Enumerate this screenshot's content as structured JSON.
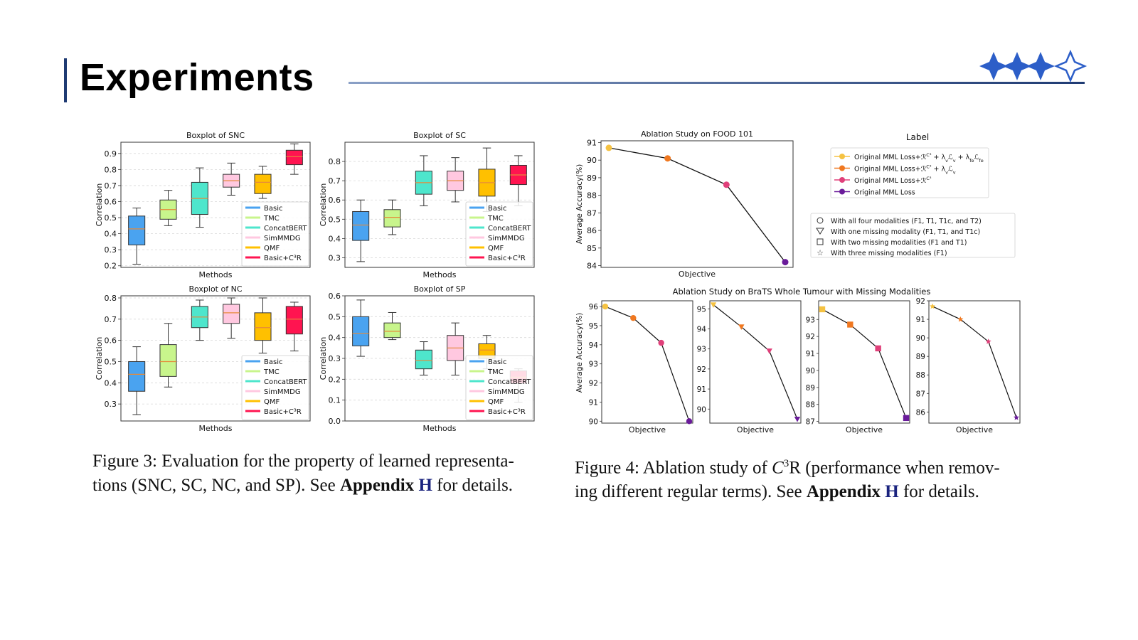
{
  "slide": {
    "title": "Experiments"
  },
  "captions": {
    "fig3": {
      "lead": "Figure 3: Evaluation for the property of learned representa-",
      "line2_pre": "tions (SNC, SC, NC, and SP). See ",
      "appendix": "Appendix",
      "appendix_ref": "H",
      "post": " for details."
    },
    "fig4": {
      "lead_pre": "Figure 4: Ablation study of ",
      "symbol": "C",
      "sup": "3",
      "symbol_tail": "R",
      "lead_post": " (performance when remov-",
      "line2_pre": "ing different regular terms). See ",
      "appendix": "Appendix",
      "appendix_ref": "H",
      "post": " for details."
    }
  },
  "colors": {
    "accent": "#1f3b73",
    "Basic": "#4aa3f0",
    "TMC": "#c8f58c",
    "ConcatBERT": "#4ee6cc",
    "SimMMDG": "#ffc8e0",
    "QMF": "#ffc000",
    "BasicC3R": "#ff1450"
  },
  "chart_data": [
    {
      "type": "box",
      "title": "Boxplot of SNC",
      "xlabel": "Methods",
      "ylabel": "Correlation",
      "ylim": [
        0.19,
        0.97
      ],
      "yticks": [
        0.2,
        0.3,
        0.4,
        0.5,
        0.6,
        0.7,
        0.8,
        0.9
      ],
      "legend_position": "lower-right",
      "series": [
        {
          "name": "Basic",
          "color": "#4aa3f0",
          "whislo": 0.21,
          "q1": 0.33,
          "median": 0.43,
          "q3": 0.51,
          "whishi": 0.56
        },
        {
          "name": "TMC",
          "color": "#c8f58c",
          "whislo": 0.45,
          "q1": 0.49,
          "median": 0.55,
          "q3": 0.61,
          "whishi": 0.67
        },
        {
          "name": "ConcatBERT",
          "color": "#4ee6cc",
          "whislo": 0.44,
          "q1": 0.52,
          "median": 0.62,
          "q3": 0.72,
          "whishi": 0.81
        },
        {
          "name": "SimMMDG",
          "color": "#ffc8e0",
          "whislo": 0.64,
          "q1": 0.69,
          "median": 0.73,
          "q3": 0.77,
          "whishi": 0.84
        },
        {
          "name": "QMF",
          "color": "#ffc000",
          "whislo": 0.62,
          "q1": 0.65,
          "median": 0.72,
          "q3": 0.77,
          "whishi": 0.82
        },
        {
          "name": "Basic+C³R",
          "color": "#ff1450",
          "whislo": 0.77,
          "q1": 0.83,
          "median": 0.88,
          "q3": 0.92,
          "whishi": 0.96
        }
      ]
    },
    {
      "type": "box",
      "title": "Boxplot of SC",
      "xlabel": "Methods",
      "ylabel": "Correlation",
      "ylim": [
        0.25,
        0.9
      ],
      "yticks": [
        0.3,
        0.4,
        0.5,
        0.6,
        0.7,
        0.8
      ],
      "legend_position": "lower-right",
      "series": [
        {
          "name": "Basic",
          "color": "#4aa3f0",
          "whislo": 0.28,
          "q1": 0.39,
          "median": 0.47,
          "q3": 0.54,
          "whishi": 0.6
        },
        {
          "name": "TMC",
          "color": "#c8f58c",
          "whislo": 0.42,
          "q1": 0.46,
          "median": 0.51,
          "q3": 0.55,
          "whishi": 0.6
        },
        {
          "name": "ConcatBERT",
          "color": "#4ee6cc",
          "whislo": 0.57,
          "q1": 0.63,
          "median": 0.69,
          "q3": 0.75,
          "whishi": 0.83
        },
        {
          "name": "SimMMDG",
          "color": "#ffc8e0",
          "whislo": 0.59,
          "q1": 0.65,
          "median": 0.7,
          "q3": 0.75,
          "whishi": 0.82
        },
        {
          "name": "QMF",
          "color": "#ffc000",
          "whislo": 0.54,
          "q1": 0.62,
          "median": 0.69,
          "q3": 0.76,
          "whishi": 0.87
        },
        {
          "name": "Basic+C³R",
          "color": "#ff1450",
          "whislo": 0.57,
          "q1": 0.68,
          "median": 0.73,
          "q3": 0.78,
          "whishi": 0.83
        }
      ]
    },
    {
      "type": "box",
      "title": "Boxplot of NC",
      "xlabel": "Methods",
      "ylabel": "Correlation",
      "ylim": [
        0.22,
        0.81
      ],
      "yticks": [
        0.3,
        0.4,
        0.5,
        0.6,
        0.7,
        0.8
      ],
      "legend_position": "lower-right",
      "series": [
        {
          "name": "Basic",
          "color": "#4aa3f0",
          "whislo": 0.25,
          "q1": 0.36,
          "median": 0.44,
          "q3": 0.5,
          "whishi": 0.57
        },
        {
          "name": "TMC",
          "color": "#c8f58c",
          "whislo": 0.38,
          "q1": 0.43,
          "median": 0.5,
          "q3": 0.58,
          "whishi": 0.68
        },
        {
          "name": "ConcatBERT",
          "color": "#4ee6cc",
          "whislo": 0.6,
          "q1": 0.66,
          "median": 0.71,
          "q3": 0.76,
          "whishi": 0.79
        },
        {
          "name": "SimMMDG",
          "color": "#ffc8e0",
          "whislo": 0.61,
          "q1": 0.68,
          "median": 0.73,
          "q3": 0.77,
          "whishi": 0.8
        },
        {
          "name": "QMF",
          "color": "#ffc000",
          "whislo": 0.54,
          "q1": 0.6,
          "median": 0.66,
          "q3": 0.73,
          "whishi": 0.8
        },
        {
          "name": "Basic+C³R",
          "color": "#ff1450",
          "whislo": 0.55,
          "q1": 0.63,
          "median": 0.7,
          "q3": 0.76,
          "whishi": 0.78
        }
      ]
    },
    {
      "type": "box",
      "title": "Boxplot of SP",
      "xlabel": "Methods",
      "ylabel": "Correlation",
      "ylim": [
        0.0,
        0.6
      ],
      "yticks": [
        0.0,
        0.1,
        0.2,
        0.3,
        0.4,
        0.5,
        0.6
      ],
      "legend_position": "lower-right",
      "series": [
        {
          "name": "Basic",
          "color": "#4aa3f0",
          "whislo": 0.31,
          "q1": 0.36,
          "median": 0.42,
          "q3": 0.5,
          "whishi": 0.58
        },
        {
          "name": "TMC",
          "color": "#c8f58c",
          "whislo": 0.39,
          "q1": 0.4,
          "median": 0.43,
          "q3": 0.47,
          "whishi": 0.52
        },
        {
          "name": "ConcatBERT",
          "color": "#4ee6cc",
          "whislo": 0.22,
          "q1": 0.25,
          "median": 0.29,
          "q3": 0.34,
          "whishi": 0.38
        },
        {
          "name": "SimMMDG",
          "color": "#ffc8e0",
          "whislo": 0.22,
          "q1": 0.29,
          "median": 0.35,
          "q3": 0.41,
          "whishi": 0.47
        },
        {
          "name": "QMF",
          "color": "#ffc000",
          "whislo": 0.25,
          "q1": 0.3,
          "median": 0.34,
          "q3": 0.37,
          "whishi": 0.41
        },
        {
          "name": "Basic+C³R",
          "color": "#ff1450",
          "whislo": 0.09,
          "q1": 0.18,
          "median": 0.21,
          "q3": 0.24,
          "whishi": 0.25
        }
      ]
    },
    {
      "type": "line",
      "title": "Ablation Study on FOOD 101",
      "xlabel": "Objective",
      "ylabel": "Average Accuracy(%)",
      "ylim": [
        83.9,
        91.1
      ],
      "yticks": [
        84,
        85,
        86,
        87,
        88,
        89,
        90,
        91
      ],
      "values": [
        90.7,
        90.1,
        88.6,
        84.2
      ],
      "point_colors": [
        "#f5c242",
        "#f07820",
        "#e0407a",
        "#6a1b9a"
      ],
      "marker": "circle"
    },
    {
      "type": "line",
      "title": "Ablation Study on BraTS Whole Tumour with Missing Modalities",
      "xlabel": "Objective",
      "ylabel": "Average Accuracy(%)",
      "panels": [
        {
          "marker": "circle",
          "ylim": [
            89.9,
            96.3
          ],
          "yticks": [
            90,
            91,
            92,
            93,
            94,
            95,
            96
          ],
          "values": [
            96.0,
            95.4,
            94.1,
            90.0
          ]
        },
        {
          "marker": "triangle",
          "ylim": [
            89.3,
            95.4
          ],
          "yticks": [
            90,
            91,
            92,
            93,
            94,
            95
          ],
          "values": [
            95.2,
            94.1,
            92.9,
            89.5
          ]
        },
        {
          "marker": "square",
          "ylim": [
            86.9,
            94.1
          ],
          "yticks": [
            87,
            88,
            89,
            90,
            91,
            92,
            93
          ],
          "values": [
            93.6,
            92.7,
            91.3,
            87.2
          ]
        },
        {
          "marker": "star",
          "ylim": [
            85.4,
            92.0
          ],
          "yticks": [
            86,
            87,
            88,
            89,
            90,
            91,
            92
          ],
          "values": [
            91.7,
            91.0,
            89.8,
            85.7
          ]
        }
      ],
      "point_colors": [
        "#f5c242",
        "#f07820",
        "#e0407a",
        "#6a1b9a"
      ]
    }
  ],
  "fig4_legend": {
    "title": "Label",
    "items": [
      {
        "text": "Original MML Loss+ℛ^{C³} + λ_v ℒ_v + λ_fe ℒ_fe",
        "base": "Original MML Loss+",
        "color": "#f5c242"
      },
      {
        "text": "Original MML Loss+ℛ^{C³} + λ_v ℒ_v",
        "base": "Original MML Loss+",
        "color": "#f07820"
      },
      {
        "text": "Original MML Loss+ℛ^{C³}",
        "base": "Original MML Loss+",
        "color": "#e0407a"
      },
      {
        "text": "Original MML Loss",
        "base": "Original MML Loss",
        "color": "#6a1b9a"
      }
    ],
    "marker_items": [
      {
        "marker": "circle",
        "text": "With all four modalities (F1, T1, T1c, and T2)"
      },
      {
        "marker": "triangle",
        "text": "With one missing modality (F1, T1, and T1c)"
      },
      {
        "marker": "square",
        "text": "With two missing modalities (F1 and T1)"
      },
      {
        "marker": "star",
        "text": "With three missing modalities (F1)"
      }
    ]
  }
}
